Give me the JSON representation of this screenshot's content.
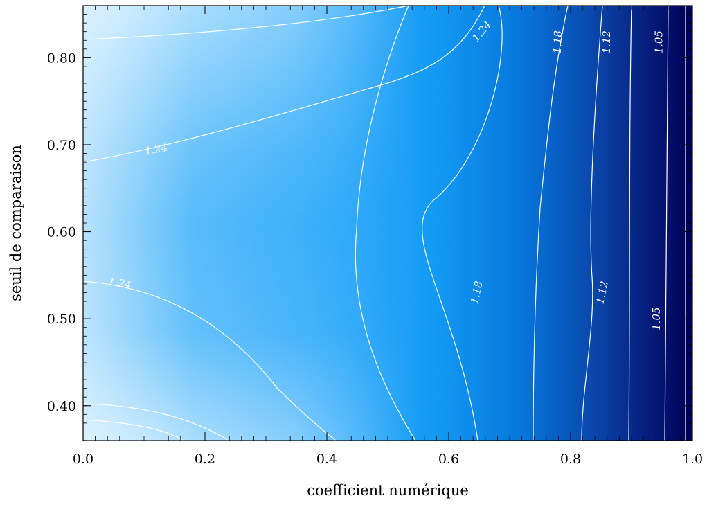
{
  "chart_data": {
    "type": "contour",
    "title": "",
    "xlabel": "coefficient numérique",
    "ylabel": "seuil de comparaison",
    "xlim": [
      0.0,
      1.0
    ],
    "ylim": [
      0.36,
      0.86
    ],
    "x_ticks": [
      0.0,
      0.2,
      0.4,
      0.6,
      0.8,
      1.0
    ],
    "x_tick_labels": [
      "0.0",
      "0.2",
      "0.4",
      "0.6",
      "0.8",
      "1.0"
    ],
    "y_ticks": [
      0.4,
      0.5,
      0.6,
      0.7,
      0.8
    ],
    "y_tick_labels": [
      "0.40",
      "0.50",
      "0.60",
      "0.70",
      "0.80"
    ],
    "grid": false,
    "colormap": {
      "low": "#000060",
      "mid": "#1a9cf8",
      "high": "#e8f6ff"
    },
    "contour_line_color": "#ffffff",
    "contour_labels": [
      {
        "text": "1.24",
        "x": 0.12,
        "y": 0.694
      },
      {
        "text": "1.24",
        "x": 0.655,
        "y": 0.83
      },
      {
        "text": "1.24",
        "x": 0.06,
        "y": 0.54
      },
      {
        "text": "1.18",
        "x": 0.78,
        "y": 0.818
      },
      {
        "text": "1.18",
        "x": 0.647,
        "y": 0.53
      },
      {
        "text": "1.12",
        "x": 0.86,
        "y": 0.818
      },
      {
        "text": "1.12",
        "x": 0.853,
        "y": 0.53
      },
      {
        "text": "1.05",
        "x": 0.946,
        "y": 0.818
      },
      {
        "text": "1.05",
        "x": 0.942,
        "y": 0.5
      }
    ]
  }
}
